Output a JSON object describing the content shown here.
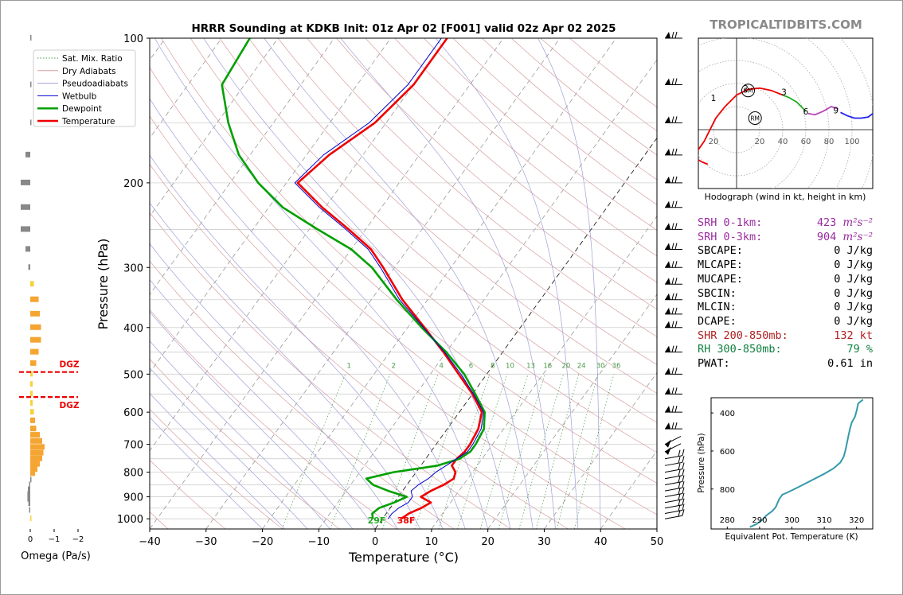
{
  "title": "HRRR Sounding at KDKB Init: 01z Apr 02 [F001] valid 02z Apr 02 2025",
  "watermark": "TROPICALTIDBITS.COM",
  "skewt": {
    "xlabel": "Temperature (°C)",
    "ylabel": "Pressure (hPa)",
    "xlim": [
      -40,
      50
    ],
    "ylim": [
      1050,
      100
    ],
    "xticks": [
      "−40",
      "−30",
      "−20",
      "−10",
      "0",
      "10",
      "20",
      "30",
      "40",
      "50"
    ],
    "yticks": [
      "100",
      "200",
      "300",
      "400",
      "500",
      "600",
      "700",
      "800",
      "900",
      "1000"
    ],
    "mixing_ratio_labels": [
      "1",
      "2",
      "4",
      "6",
      "8",
      "10",
      "13",
      "16",
      "20",
      "24",
      "30",
      "36"
    ],
    "surface_dewpoint_label": "29F",
    "surface_temperature_label": "38F"
  },
  "legend": [
    {
      "label": "Sat. Mix. Ratio",
      "color": "#4a9a4a"
    },
    {
      "label": "Dry Adiabats",
      "color": "#d8a0a0"
    },
    {
      "label": "Pseudoadiabats",
      "color": "#a0a0d8"
    },
    {
      "label": "Wetbulb",
      "color": "#0000cc"
    },
    {
      "label": "Dewpoint",
      "color": "#00a000"
    },
    {
      "label": "Temperature",
      "color": "#ee0000"
    }
  ],
  "omega": {
    "xlabel": "Omega (Pa/s)",
    "xticks": [
      "0",
      "−1",
      "−2"
    ],
    "dgz_label": "DGZ"
  },
  "hodograph": {
    "caption": "Hodograph (wind in kt, height in km)",
    "ring_labels": [
      "20",
      "20",
      "40",
      "60",
      "80",
      "100"
    ],
    "height_labels": [
      "1",
      "2",
      "3",
      "6",
      "9"
    ],
    "sm_label": "SM",
    "rm_label": "RM"
  },
  "stats": [
    {
      "label": "SRH 0-1km:",
      "value": "423",
      "unit": "m²s⁻²",
      "color": "#9a2aa0"
    },
    {
      "label": "SRH 0-3km:",
      "value": "904",
      "unit": "m²s⁻²",
      "color": "#9a2aa0"
    },
    {
      "label": "SBCAPE:",
      "value": "0 J/kg",
      "unit": "",
      "color": "#000000"
    },
    {
      "label": "MLCAPE:",
      "value": "0 J/kg",
      "unit": "",
      "color": "#000000"
    },
    {
      "label": "MUCAPE:",
      "value": "0 J/kg",
      "unit": "",
      "color": "#000000"
    },
    {
      "label": "SBCIN:",
      "value": "0 J/kg",
      "unit": "",
      "color": "#000000"
    },
    {
      "label": "MLCIN:",
      "value": "0 J/kg",
      "unit": "",
      "color": "#000000"
    },
    {
      "label": "DCAPE:",
      "value": "0 J/kg",
      "unit": "",
      "color": "#000000"
    },
    {
      "label": "SHR 200-850mb:",
      "value": "132 kt",
      "unit": "",
      "color": "#b02020"
    },
    {
      "label": "RH 300-850mb:",
      "value": "79 %",
      "unit": "",
      "color": "#108040"
    },
    {
      "label": "PWAT:",
      "value": "0.61 in",
      "unit": "",
      "color": "#000000"
    }
  ],
  "theta_e": {
    "xlabel": "Equivalent Pot. Temperature (K)",
    "ylabel": "Pressure (hPa)",
    "xticks": [
      "280",
      "290",
      "300",
      "310",
      "320"
    ],
    "yticks": [
      "400",
      "600",
      "800"
    ]
  },
  "chart_data": [
    {
      "type": "line",
      "title": "HRRR Sounding at KDKB Init: 01z Apr 02 [F001] valid 02z Apr 02 2025",
      "xlabel": "Temperature (°C)",
      "ylabel": "Pressure (hPa)",
      "xlim": [
        -40,
        50
      ],
      "ylim": [
        1050,
        100
      ],
      "y_scale": "log",
      "series": [
        {
          "name": "Temperature",
          "color": "#ee0000",
          "pressure": [
            1000,
            975,
            950,
            925,
            900,
            875,
            850,
            825,
            800,
            775,
            750,
            725,
            700,
            650,
            600,
            550,
            500,
            450,
            400,
            350,
            300,
            275,
            250,
            225,
            200,
            175,
            150,
            125,
            100
          ],
          "temperature": [
            3.3,
            4.0,
            5.5,
            6.5,
            4.0,
            5.0,
            6.5,
            7.5,
            7.0,
            5.5,
            5.5,
            6.0,
            6.0,
            5.5,
            4.0,
            0.0,
            -5.0,
            -10.5,
            -17.0,
            -24.5,
            -32.0,
            -36.5,
            -43.0,
            -50.5,
            -58.0,
            -56.0,
            -52.0,
            -50.0,
            -50.0
          ]
        },
        {
          "name": "Dewpoint",
          "color": "#00a000",
          "pressure": [
            1000,
            975,
            950,
            925,
            900,
            875,
            850,
            825,
            800,
            775,
            750,
            725,
            700,
            650,
            600,
            550,
            500,
            450,
            400,
            350,
            300,
            275,
            250,
            225,
            200,
            175,
            150,
            125,
            100
          ],
          "temperature": [
            -1.7,
            -2.5,
            -2.0,
            0.0,
            1.5,
            -2.5,
            -6.0,
            -8.0,
            -4.0,
            3.0,
            6.0,
            7.0,
            7.0,
            6.5,
            4.5,
            0.5,
            -4.0,
            -10.0,
            -17.5,
            -25.5,
            -34.0,
            -40.0,
            -48.5,
            -57.5,
            -65.0,
            -72.0,
            -78.0,
            -84.0,
            -85.0
          ]
        },
        {
          "name": "Wetbulb",
          "color": "#0000cc",
          "pressure": [
            1000,
            975,
            950,
            925,
            900,
            875,
            850,
            825,
            800,
            775,
            750,
            725,
            700,
            650,
            600,
            550,
            500,
            450,
            400,
            350,
            300,
            275,
            250,
            225,
            200,
            175,
            150,
            125,
            100
          ],
          "temperature": [
            1.0,
            1.0,
            1.5,
            2.5,
            2.5,
            1.5,
            2.0,
            3.0,
            3.5,
            4.5,
            5.5,
            6.5,
            6.5,
            6.0,
            4.3,
            0.2,
            -4.6,
            -10.3,
            -17.2,
            -25.0,
            -32.5,
            -37.0,
            -43.5,
            -51.0,
            -58.5,
            -57.0,
            -53.0,
            -51.0,
            -51.0
          ]
        }
      ]
    },
    {
      "type": "bar",
      "title": "",
      "xlabel": "Omega (Pa/s)",
      "orientation": "horizontal",
      "xlim": [
        0.3,
        -2.2
      ],
      "pressure": [
        1000,
        960,
        930,
        910,
        890,
        870,
        850,
        830,
        805,
        790,
        770,
        750,
        730,
        710,
        690,
        670,
        650,
        625,
        600,
        575,
        550,
        525,
        500,
        475,
        450,
        425,
        400,
        375,
        350,
        325,
        300,
        275,
        250,
        225,
        200,
        175,
        150,
        125,
        100
      ],
      "values": [
        -0.05,
        0.05,
        0.08,
        0.12,
        0.12,
        0.1,
        0.05,
        0.0,
        -0.2,
        -0.3,
        -0.4,
        -0.5,
        -0.55,
        -0.6,
        -0.5,
        -0.4,
        -0.25,
        -0.2,
        -0.15,
        -0.1,
        -0.1,
        -0.1,
        -0.1,
        -0.25,
        -0.35,
        -0.45,
        -0.45,
        -0.4,
        -0.35,
        -0.15,
        0.08,
        0.2,
        0.4,
        0.4,
        0.4,
        0.2,
        0.0,
        0.0,
        0.0
      ],
      "dgz": [
        495,
        558
      ]
    },
    {
      "type": "line",
      "title": "Hodograph (wind in kt, height in km)",
      "xlabel": "",
      "ylabel": "",
      "units": "kt",
      "series": [
        {
          "name": "0-3 km",
          "color": "#ee0000",
          "u": [
            -25,
            -30,
            -35,
            -35,
            -28,
            -18,
            -10,
            0,
            10,
            20,
            30,
            40
          ],
          "v": [
            -30,
            -28,
            -25,
            -20,
            -10,
            10,
            20,
            30,
            35,
            36,
            34,
            30
          ]
        },
        {
          "name": "3-6 km",
          "color": "#22aa22",
          "u": [
            40,
            45,
            52,
            58,
            60
          ],
          "v": [
            30,
            28,
            24,
            18,
            16
          ]
        },
        {
          "name": "6-9 km",
          "color": "#bb44bb",
          "u": [
            62,
            68,
            75,
            82,
            88
          ],
          "v": [
            14,
            13,
            16,
            20,
            18
          ]
        },
        {
          "name": "9+ km",
          "color": "#2222ee",
          "u": [
            90,
            96,
            102,
            108,
            114,
            118
          ],
          "v": [
            15,
            12,
            10,
            10,
            11,
            14
          ]
        }
      ],
      "height_markers": [
        "1",
        "2",
        "3",
        "6",
        "9"
      ]
    },
    {
      "type": "line",
      "title": "",
      "xlabel": "Equivalent Pot. Temperature (K)",
      "ylabel": "Pressure (hPa)",
      "xlim": [
        275,
        325
      ],
      "ylim": [
        1010,
        320
      ],
      "series": [
        {
          "name": "",
          "color": "#3399aa",
          "theta_e": [
            287,
            289,
            291,
            292,
            294,
            295,
            295.5,
            296,
            297,
            299,
            302,
            306,
            310,
            313,
            315,
            316,
            316.5,
            317,
            317.5,
            318,
            318.5,
            319.5,
            320,
            320.5,
            322
          ],
          "pressure": [
            1000,
            985,
            960,
            940,
            915,
            895,
            875,
            855,
            830,
            815,
            790,
            755,
            720,
            690,
            660,
            630,
            600,
            560,
            520,
            480,
            450,
            420,
            390,
            350,
            330
          ]
        }
      ]
    }
  ]
}
